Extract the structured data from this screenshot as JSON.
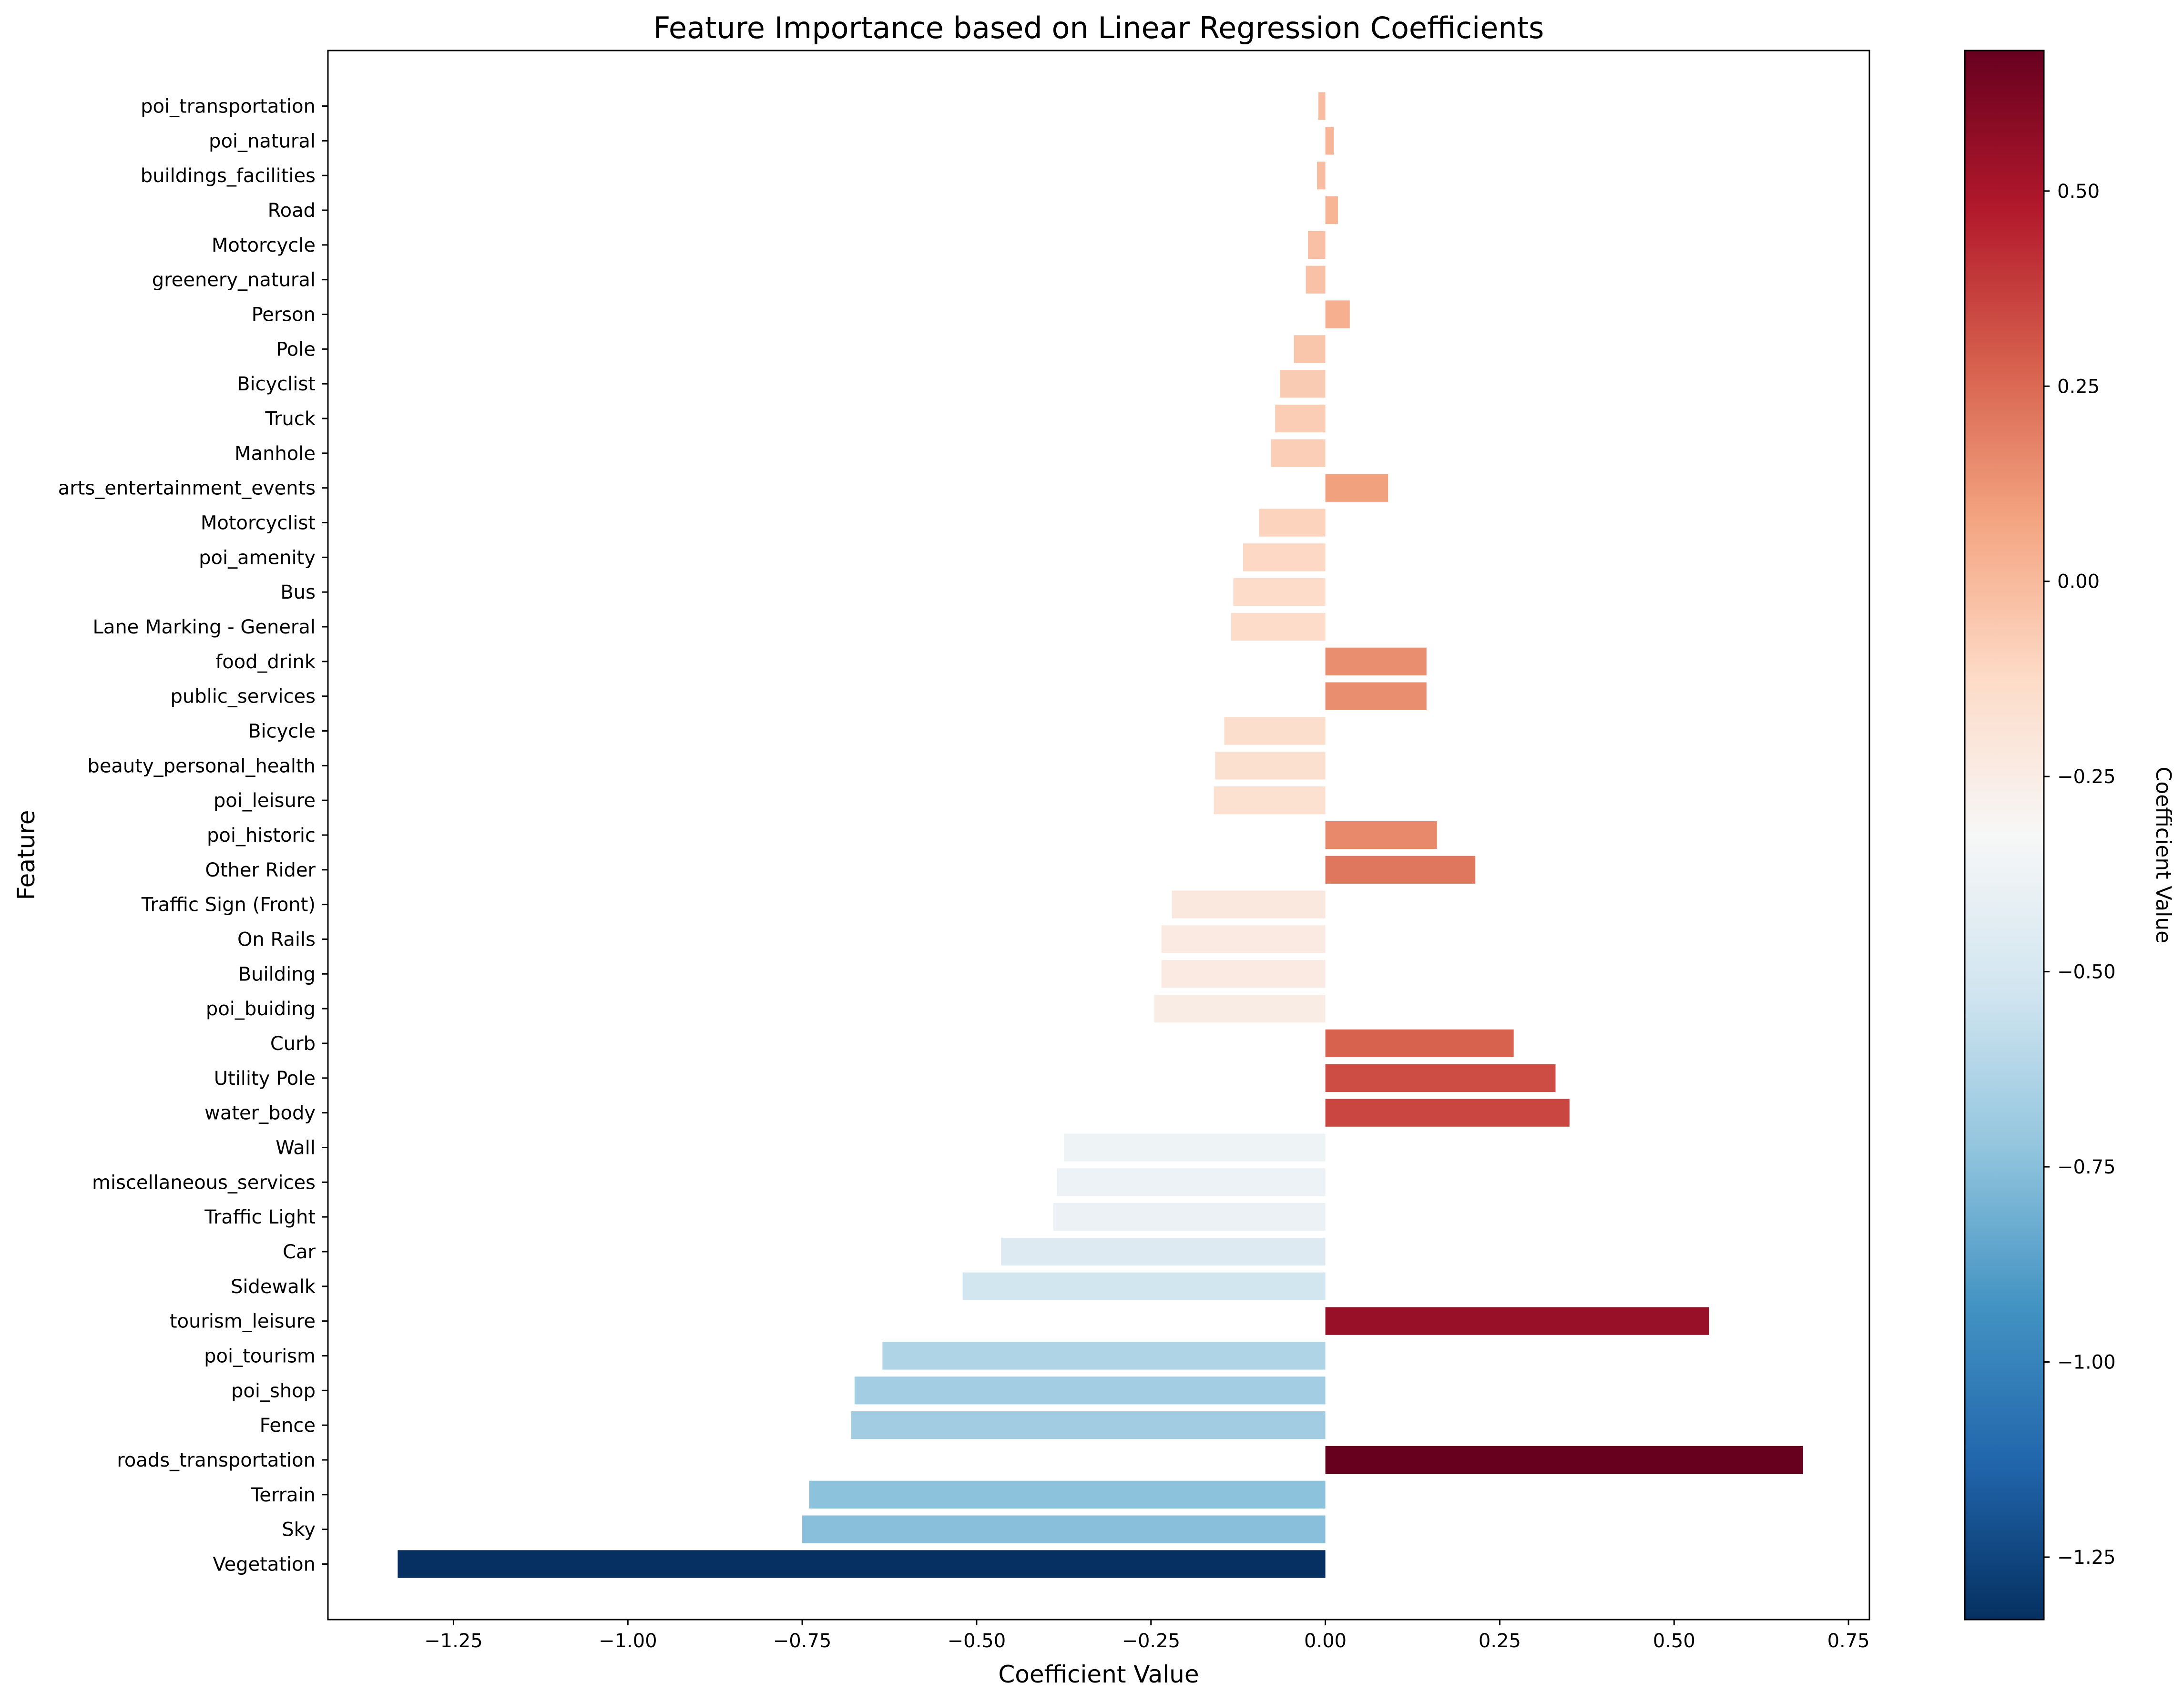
{
  "chart_data": {
    "type": "bar",
    "orientation": "horizontal",
    "title": "Feature Importance based on Linear Regression Coefficients",
    "xlabel": "Coefficient Value",
    "ylabel": "Feature",
    "xlim": [
      -1.43,
      0.78
    ],
    "x_ticks": [
      -1.25,
      -1.0,
      -0.75,
      -0.5,
      -0.25,
      0.0,
      0.25,
      0.5,
      0.75
    ],
    "x_tick_labels": [
      "−1.25",
      "−1.00",
      "−0.75",
      "−0.50",
      "−0.25",
      "0.00",
      "0.25",
      "0.50",
      "0.75"
    ],
    "grid": false,
    "colormap": "RdBu_r",
    "colorbar": {
      "label": "Coefficient Value",
      "range": [
        -1.33,
        0.68
      ],
      "ticks": [
        0.5,
        0.25,
        0.0,
        -0.25,
        -0.5,
        -0.75,
        -1.0,
        -1.25
      ],
      "tick_labels": [
        "0.50",
        "0.25",
        "0.00",
        "−0.25",
        "−0.50",
        "−0.75",
        "−1.00",
        "−1.25"
      ]
    },
    "categories": [
      "Vegetation",
      "Sky",
      "Terrain",
      "roads_transportation",
      "Fence",
      "poi_shop",
      "poi_tourism",
      "tourism_leisure",
      "Sidewalk",
      "Car",
      "Traffic Light",
      "miscellaneous_services",
      "Wall",
      "water_body",
      "Utility Pole",
      "Curb",
      "poi_buiding",
      "Building",
      "On Rails",
      "Traffic Sign (Front)",
      "Other Rider",
      "poi_historic",
      "poi_leisure",
      "beauty_personal_health",
      "Bicycle",
      "public_services",
      "food_drink",
      "Lane Marking - General",
      "Bus",
      "poi_amenity",
      "Motorcyclist",
      "arts_entertainment_events",
      "Manhole",
      "Truck",
      "Bicyclist",
      "Pole",
      "Person",
      "greenery_natural",
      "Motorcycle",
      "Road",
      "buildings_facilities",
      "poi_natural",
      "poi_transportation"
    ],
    "values": [
      -1.33,
      -0.75,
      -0.74,
      0.685,
      -0.68,
      -0.675,
      -0.635,
      0.55,
      -0.52,
      -0.465,
      -0.39,
      -0.385,
      -0.375,
      0.35,
      0.33,
      0.27,
      -0.245,
      -0.235,
      -0.235,
      -0.22,
      0.215,
      0.16,
      -0.16,
      -0.158,
      -0.145,
      0.145,
      0.145,
      -0.135,
      -0.132,
      -0.118,
      -0.095,
      0.09,
      -0.078,
      -0.072,
      -0.065,
      -0.045,
      0.035,
      -0.028,
      -0.025,
      0.018,
      -0.012,
      0.012,
      -0.01
    ]
  }
}
